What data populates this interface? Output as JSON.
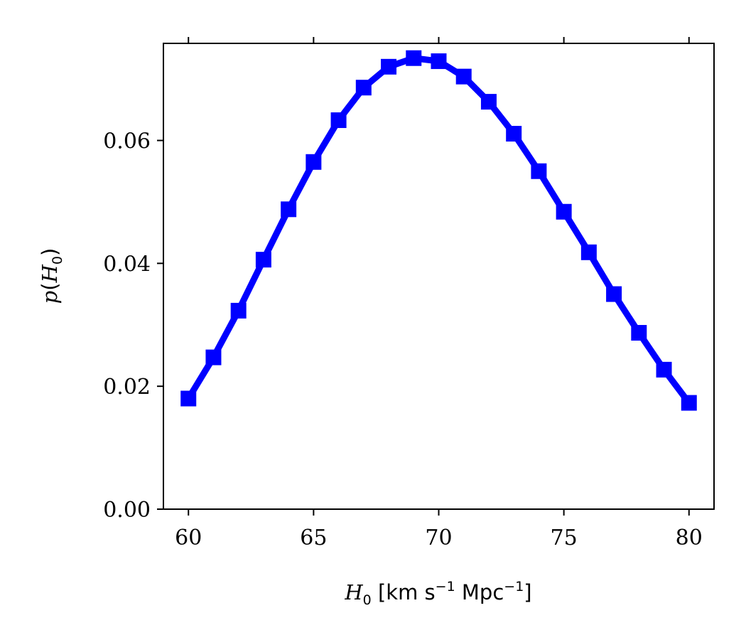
{
  "chart_data": {
    "type": "line",
    "x": [
      60,
      61,
      62,
      63,
      64,
      65,
      66,
      67,
      68,
      69,
      70,
      71,
      72,
      73,
      74,
      75,
      76,
      77,
      78,
      79,
      80
    ],
    "series": [
      {
        "values": [
          0.018,
          0.0247,
          0.0323,
          0.0406,
          0.0488,
          0.0565,
          0.0633,
          0.0686,
          0.072,
          0.0734,
          0.0729,
          0.0704,
          0.0663,
          0.0611,
          0.055,
          0.0484,
          0.0418,
          0.035,
          0.0287,
          0.0227,
          0.0173
        ],
        "color": "#0000ff",
        "marker": "square"
      }
    ],
    "xlabel": "H0 [km s−1 Mpc−1]",
    "ylabel": "p(H0)",
    "xlim": [
      59,
      81
    ],
    "ylim": [
      0.0,
      0.0758
    ],
    "xticks": [
      "60",
      "65",
      "70",
      "75",
      "80"
    ],
    "yticks": [
      "0.00",
      "0.02",
      "0.04",
      "0.06"
    ],
    "top_ticks": true,
    "grid": false
  }
}
